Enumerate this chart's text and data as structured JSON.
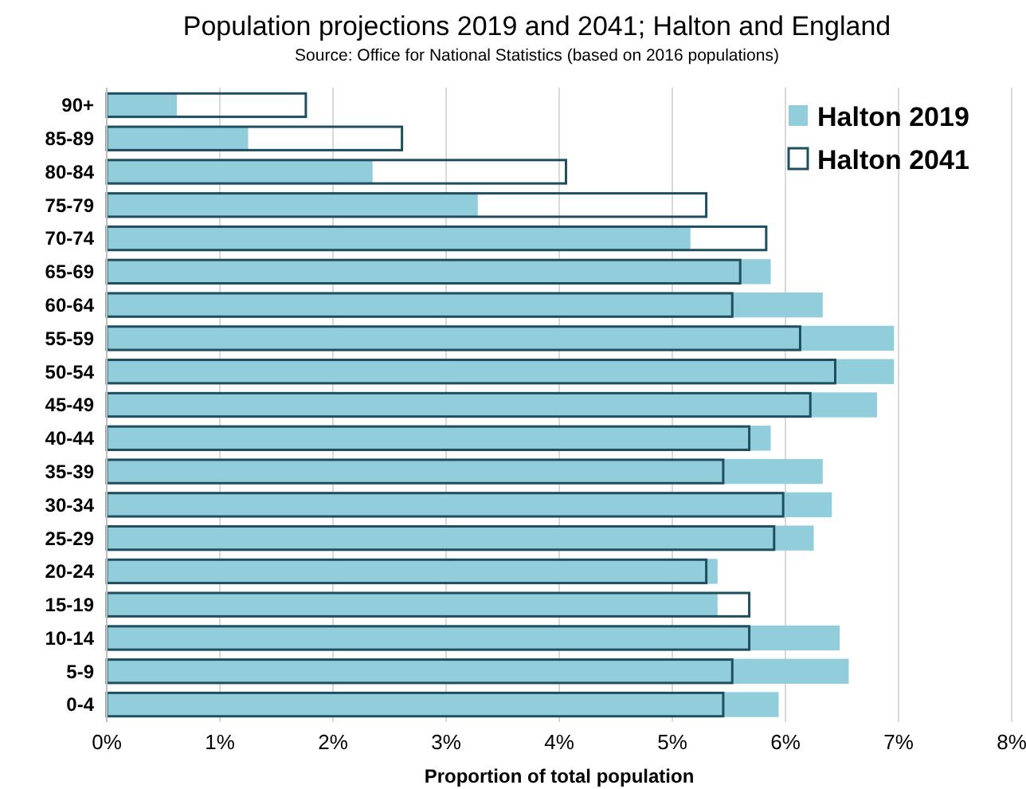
{
  "chart_data": {
    "type": "bar",
    "orientation": "horizontal",
    "title": "Population projections 2019 and 2041; Halton and England",
    "subtitle": "Source: Office for National Statistics (based on 2016 populations)",
    "xlabel": "Proportion of total population",
    "categories": [
      "90+",
      "85-89",
      "80-84",
      "75-79",
      "70-74",
      "65-69",
      "60-64",
      "55-59",
      "50-54",
      "45-49",
      "40-44",
      "35-39",
      "30-34",
      "25-29",
      "20-24",
      "15-19",
      "10-14",
      "5-9",
      "0-4"
    ],
    "series": [
      {
        "name": "Halton 2019",
        "color": "#92cddc",
        "values": [
          0.62,
          1.25,
          2.35,
          3.28,
          5.16,
          5.87,
          6.33,
          6.96,
          6.96,
          6.81,
          5.87,
          6.33,
          6.41,
          6.25,
          5.4,
          5.4,
          6.48,
          6.56,
          5.94
        ]
      },
      {
        "name": "Halton 2041",
        "color": "#1f4e5f",
        "values": [
          1.76,
          2.61,
          4.06,
          5.3,
          5.83,
          5.6,
          5.53,
          6.13,
          6.44,
          6.22,
          5.68,
          5.45,
          5.98,
          5.9,
          5.3,
          5.68,
          5.68,
          5.53,
          5.45
        ]
      }
    ],
    "xlim": [
      0,
      8
    ],
    "xticks": [
      {
        "value": 0,
        "label": "0%"
      },
      {
        "value": 1,
        "label": "1%"
      },
      {
        "value": 2,
        "label": "2%"
      },
      {
        "value": 3,
        "label": "3%"
      },
      {
        "value": 4,
        "label": "4%"
      },
      {
        "value": 5,
        "label": "5%"
      },
      {
        "value": 6,
        "label": "6%"
      },
      {
        "value": 7,
        "label": "7%"
      },
      {
        "value": 8,
        "label": "8%"
      }
    ],
    "grid": "x",
    "legend": "top right"
  }
}
